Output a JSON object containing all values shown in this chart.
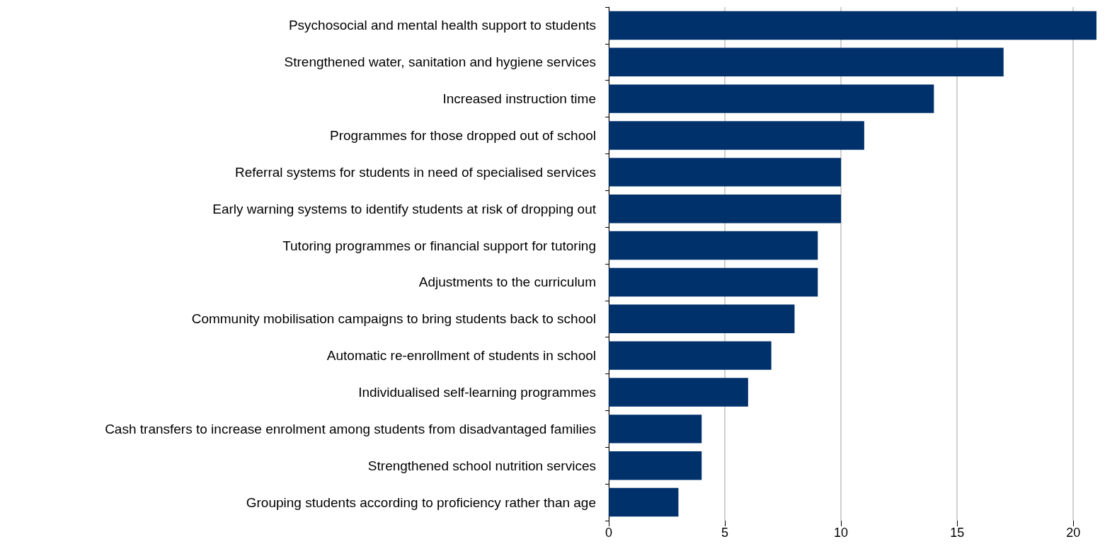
{
  "chart_data": {
    "type": "bar",
    "orientation": "horizontal",
    "categories": [
      "Psychosocial and mental health support to students",
      "Strengthened water, sanitation and hygiene services",
      "Increased instruction time",
      "Programmes for those dropped out of school",
      "Referral systems for students in need of specialised services",
      "Early warning systems to identify students at risk of dropping out",
      "Tutoring programmes or financial support for tutoring",
      "Adjustments to the curriculum",
      "Community mobilisation campaigns to bring students back to school",
      "Automatic re-enrollment of students in school",
      "Individualised self-learning programmes",
      "Cash transfers to increase enrolment among students from disadvantaged families",
      "Strengthened school nutrition services",
      "Grouping students according to proficiency rather than age"
    ],
    "values": [
      21,
      17,
      14,
      11,
      10,
      10,
      9,
      9,
      8,
      7,
      6,
      4,
      4,
      3
    ],
    "color": "#00316b",
    "xlim": [
      0,
      21
    ],
    "xticks": [
      0,
      5,
      10,
      15,
      20
    ],
    "grid": "x"
  }
}
